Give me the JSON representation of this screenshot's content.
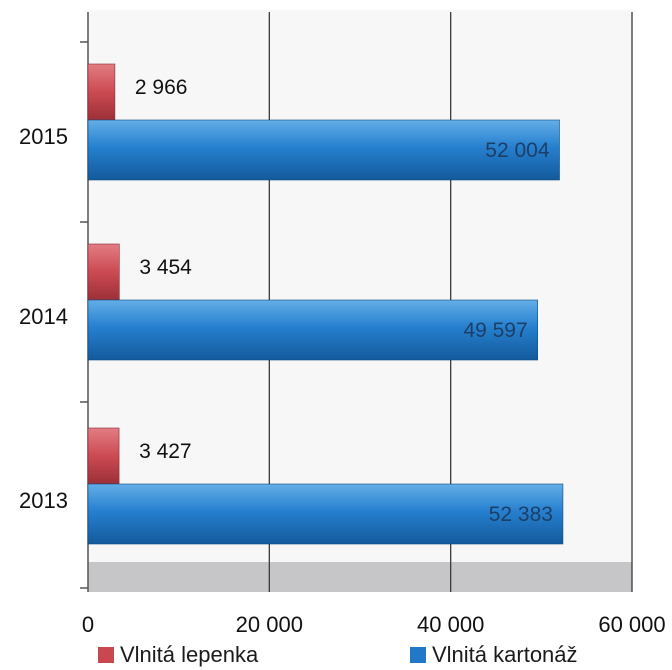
{
  "chart_data": {
    "type": "bar",
    "orientation": "horizontal",
    "categories": [
      "2015",
      "2014",
      "2013"
    ],
    "series": [
      {
        "name": "Vlnitá lepenka",
        "values": [
          2966,
          3454,
          3427
        ],
        "labels": [
          "2 966",
          "3 454",
          "3 427"
        ],
        "color": "#c9474e"
      },
      {
        "name": "Vlnitá kartonáž",
        "values": [
          52004,
          49597,
          52383
        ],
        "labels": [
          "52 004",
          "49 597",
          "52 383"
        ],
        "color": "#2178c8"
      }
    ],
    "xlim": [
      0,
      60000
    ],
    "xticks": [
      0,
      20000,
      40000,
      60000
    ],
    "xtick_labels": [
      "0",
      "20 000",
      "40 000",
      "60 000"
    ],
    "grid": true,
    "legend_position": "bottom"
  }
}
